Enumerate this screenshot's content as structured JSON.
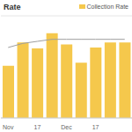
{
  "chart_data": {
    "type": "bar",
    "title": "Rate",
    "categories": [
      "Nov",
      null,
      "17",
      null,
      "Dec",
      null,
      "17",
      null,
      null
    ],
    "series": [
      {
        "name": "Collection Rate",
        "type": "bar",
        "color": "#f5c84c",
        "values": [
          51,
          74,
          68,
          83,
          72,
          54,
          69,
          74,
          74
        ]
      },
      {
        "type": "line",
        "color": "#9e9e9e",
        "values": [
          69,
          73,
          75,
          77,
          77,
          77,
          77,
          77,
          77
        ]
      }
    ],
    "ylim": [
      0,
      100
    ],
    "yticks": [
      0,
      25,
      50,
      75,
      100
    ],
    "grid": true,
    "tick_labels": "x",
    "legend": "top-right"
  }
}
